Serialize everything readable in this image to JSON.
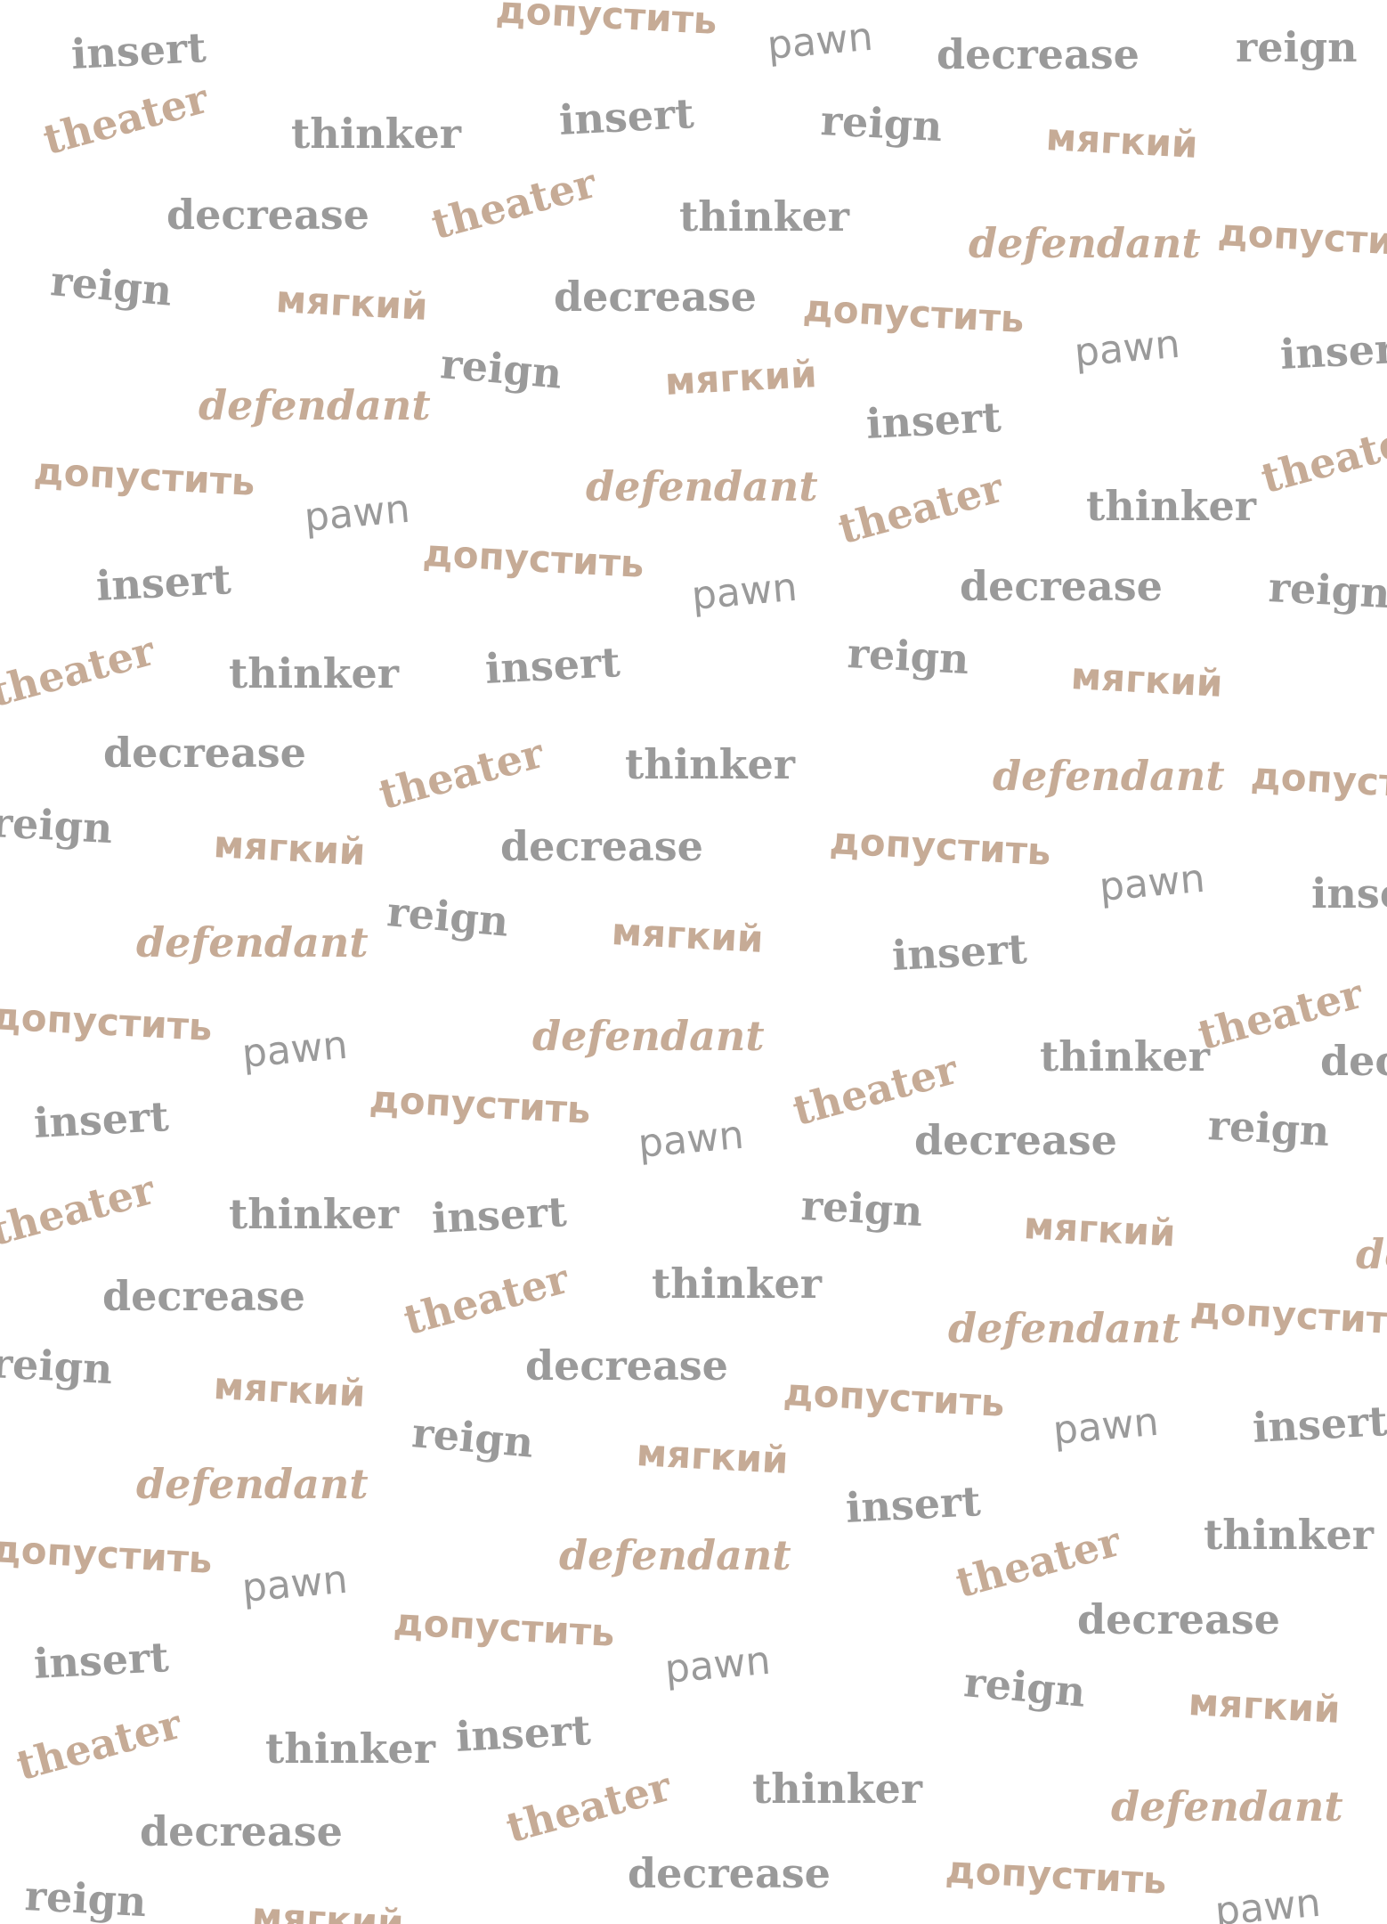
{
  "words": {
    "insert": "insert",
    "theater": "theater",
    "thinker": "thinker",
    "decrease": "decrease",
    "reign": "reign",
    "defendant": "defendant",
    "pawn": "pawn",
    "myagkiy": "мягкий",
    "dopustit": "допустить"
  },
  "colors": {
    "gray": "#9a9a9a",
    "gray_light": "#ababab",
    "tan": "#c6ab96",
    "tan_dark": "#bca08a"
  }
}
